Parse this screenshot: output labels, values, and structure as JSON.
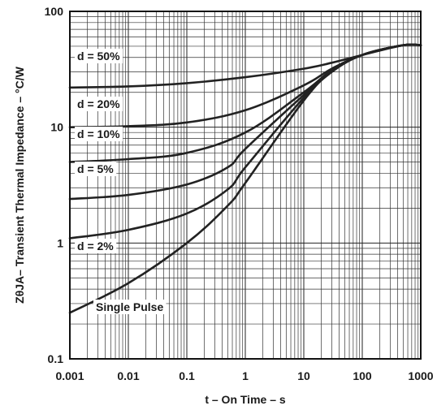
{
  "chart_data": {
    "type": "line",
    "title": "",
    "xlabel": "t – On Time – s",
    "ylabel": "ZθJA– Transient Thermal Impedance – °C/W",
    "x_scale": "log",
    "y_scale": "log",
    "xlim": [
      0.001,
      1000
    ],
    "ylim": [
      0.1,
      100
    ],
    "grid": true,
    "x_ticks": [
      "0.001",
      "0.01",
      "0.1",
      "1",
      "10",
      "100",
      "1000"
    ],
    "y_ticks": [
      "0.1",
      "1",
      "10",
      "100"
    ],
    "series": [
      {
        "name": "d = 50%",
        "x": [
          0.001,
          0.01,
          0.1,
          1,
          10,
          30,
          100,
          500,
          1000
        ],
        "y": [
          22,
          22.5,
          24,
          27,
          32,
          36,
          42,
          51,
          51
        ]
      },
      {
        "name": "d = 20%",
        "x": [
          0.001,
          0.01,
          0.1,
          1,
          10,
          30,
          100,
          500,
          1000
        ],
        "y": [
          10,
          10.2,
          11,
          14,
          23,
          32,
          42,
          51,
          51
        ]
      },
      {
        "name": "d = 10%",
        "x": [
          0.001,
          0.01,
          0.1,
          1,
          10,
          30,
          100,
          500,
          1000
        ],
        "y": [
          5,
          5.3,
          6,
          9,
          20,
          31,
          42,
          51,
          51
        ]
      },
      {
        "name": "d = 5%",
        "x": [
          0.001,
          0.01,
          0.1,
          0.5,
          1,
          10,
          30,
          100,
          500,
          1000
        ],
        "y": [
          2.4,
          2.6,
          3.2,
          4.5,
          6.5,
          19,
          31,
          42,
          51,
          51
        ]
      },
      {
        "name": "d = 2%",
        "x": [
          0.001,
          0.01,
          0.1,
          0.5,
          1,
          10,
          30,
          100,
          500,
          1000
        ],
        "y": [
          1.1,
          1.3,
          1.8,
          2.9,
          4.5,
          18,
          30,
          42,
          51,
          51
        ]
      },
      {
        "name": "Single Pulse",
        "x": [
          0.001,
          0.01,
          0.1,
          0.5,
          1,
          10,
          30,
          100,
          500,
          1000
        ],
        "y": [
          0.25,
          0.45,
          1.0,
          2.1,
          3.3,
          17,
          30,
          42,
          51,
          51
        ]
      }
    ]
  }
}
